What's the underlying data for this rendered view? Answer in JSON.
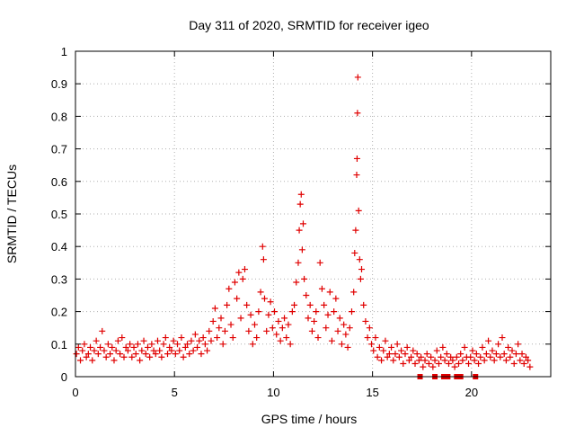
{
  "chart_data": {
    "type": "scatter",
    "title": "Day 311 of 2020, SRMTID for receiver igeo",
    "xlabel": "GPS time / hours",
    "ylabel": "SRMTID / TECUs",
    "xlim": [
      0,
      24
    ],
    "ylim": [
      0,
      1
    ],
    "xticks": [
      0,
      5,
      10,
      15,
      20
    ],
    "xtick_labels": [
      "0",
      "5",
      "10",
      "15",
      "20"
    ],
    "yticks": [
      0,
      0.1,
      0.2,
      0.3,
      0.4,
      0.5,
      0.6,
      0.7,
      0.8,
      0.9,
      1
    ],
    "ytick_labels": [
      "0",
      "0.1",
      "0.2",
      "0.3",
      "0.4",
      "0.5",
      "0.6",
      "0.7",
      "0.8",
      "0.9",
      "1"
    ],
    "grid": true,
    "marker": "plus",
    "series_color": "#e00000",
    "series": [
      {
        "name": "SRMTID",
        "points": [
          [
            0.05,
            0.07
          ],
          [
            0.15,
            0.09
          ],
          [
            0.25,
            0.05
          ],
          [
            0.35,
            0.08
          ],
          [
            0.45,
            0.1
          ],
          [
            0.55,
            0.06
          ],
          [
            0.65,
            0.07
          ],
          [
            0.75,
            0.09
          ],
          [
            0.85,
            0.05
          ],
          [
            0.95,
            0.08
          ],
          [
            1.05,
            0.11
          ],
          [
            1.15,
            0.07
          ],
          [
            1.25,
            0.09
          ],
          [
            1.35,
            0.14
          ],
          [
            1.45,
            0.08
          ],
          [
            1.55,
            0.06
          ],
          [
            1.65,
            0.1
          ],
          [
            1.75,
            0.07
          ],
          [
            1.85,
            0.09
          ],
          [
            1.95,
            0.05
          ],
          [
            2.05,
            0.08
          ],
          [
            2.15,
            0.11
          ],
          [
            2.25,
            0.07
          ],
          [
            2.35,
            0.12
          ],
          [
            2.45,
            0.06
          ],
          [
            2.55,
            0.09
          ],
          [
            2.65,
            0.08
          ],
          [
            2.75,
            0.1
          ],
          [
            2.85,
            0.06
          ],
          [
            2.95,
            0.09
          ],
          [
            3.05,
            0.07
          ],
          [
            3.15,
            0.1
          ],
          [
            3.25,
            0.05
          ],
          [
            3.35,
            0.08
          ],
          [
            3.45,
            0.11
          ],
          [
            3.55,
            0.07
          ],
          [
            3.65,
            0.09
          ],
          [
            3.75,
            0.06
          ],
          [
            3.85,
            0.1
          ],
          [
            3.95,
            0.08
          ],
          [
            4.05,
            0.07
          ],
          [
            4.15,
            0.11
          ],
          [
            4.25,
            0.08
          ],
          [
            4.35,
            0.06
          ],
          [
            4.45,
            0.1
          ],
          [
            4.55,
            0.12
          ],
          [
            4.65,
            0.07
          ],
          [
            4.75,
            0.09
          ],
          [
            4.85,
            0.08
          ],
          [
            4.95,
            0.11
          ],
          [
            5.05,
            0.07
          ],
          [
            5.15,
            0.1
          ],
          [
            5.25,
            0.08
          ],
          [
            5.35,
            0.12
          ],
          [
            5.45,
            0.06
          ],
          [
            5.55,
            0.09
          ],
          [
            5.65,
            0.1
          ],
          [
            5.75,
            0.07
          ],
          [
            5.85,
            0.11
          ],
          [
            5.95,
            0.08
          ],
          [
            6.05,
            0.13
          ],
          [
            6.15,
            0.09
          ],
          [
            6.25,
            0.11
          ],
          [
            6.35,
            0.07
          ],
          [
            6.45,
            0.12
          ],
          [
            6.55,
            0.1
          ],
          [
            6.65,
            0.08
          ],
          [
            6.75,
            0.14
          ],
          [
            6.85,
            0.11
          ],
          [
            6.95,
            0.17
          ],
          [
            7.05,
            0.21
          ],
          [
            7.15,
            0.12
          ],
          [
            7.25,
            0.15
          ],
          [
            7.35,
            0.18
          ],
          [
            7.45,
            0.1
          ],
          [
            7.55,
            0.14
          ],
          [
            7.65,
            0.22
          ],
          [
            7.75,
            0.27
          ],
          [
            7.85,
            0.16
          ],
          [
            7.95,
            0.12
          ],
          [
            8.05,
            0.29
          ],
          [
            8.15,
            0.24
          ],
          [
            8.25,
            0.32
          ],
          [
            8.35,
            0.18
          ],
          [
            8.45,
            0.3
          ],
          [
            8.55,
            0.33
          ],
          [
            8.65,
            0.22
          ],
          [
            8.75,
            0.14
          ],
          [
            8.85,
            0.19
          ],
          [
            8.95,
            0.1
          ],
          [
            9.05,
            0.16
          ],
          [
            9.15,
            0.12
          ],
          [
            9.25,
            0.2
          ],
          [
            9.35,
            0.26
          ],
          [
            9.45,
            0.4
          ],
          [
            9.5,
            0.36
          ],
          [
            9.55,
            0.24
          ],
          [
            9.65,
            0.14
          ],
          [
            9.75,
            0.19
          ],
          [
            9.85,
            0.23
          ],
          [
            9.95,
            0.15
          ],
          [
            10.05,
            0.2
          ],
          [
            10.15,
            0.13
          ],
          [
            10.25,
            0.17
          ],
          [
            10.35,
            0.11
          ],
          [
            10.45,
            0.15
          ],
          [
            10.55,
            0.18
          ],
          [
            10.65,
            0.12
          ],
          [
            10.75,
            0.16
          ],
          [
            10.85,
            0.1
          ],
          [
            10.95,
            0.2
          ],
          [
            11.05,
            0.22
          ],
          [
            11.15,
            0.29
          ],
          [
            11.25,
            0.35
          ],
          [
            11.3,
            0.45
          ],
          [
            11.35,
            0.53
          ],
          [
            11.4,
            0.56
          ],
          [
            11.45,
            0.39
          ],
          [
            11.5,
            0.47
          ],
          [
            11.55,
            0.3
          ],
          [
            11.65,
            0.25
          ],
          [
            11.75,
            0.18
          ],
          [
            11.85,
            0.22
          ],
          [
            11.95,
            0.14
          ],
          [
            12.05,
            0.17
          ],
          [
            12.15,
            0.2
          ],
          [
            12.25,
            0.12
          ],
          [
            12.35,
            0.35
          ],
          [
            12.45,
            0.27
          ],
          [
            12.55,
            0.22
          ],
          [
            12.65,
            0.15
          ],
          [
            12.75,
            0.19
          ],
          [
            12.85,
            0.26
          ],
          [
            12.95,
            0.11
          ],
          [
            13.05,
            0.2
          ],
          [
            13.15,
            0.24
          ],
          [
            13.25,
            0.14
          ],
          [
            13.35,
            0.18
          ],
          [
            13.45,
            0.1
          ],
          [
            13.55,
            0.16
          ],
          [
            13.65,
            0.13
          ],
          [
            13.75,
            0.09
          ],
          [
            13.85,
            0.15
          ],
          [
            13.95,
            0.2
          ],
          [
            14.05,
            0.26
          ],
          [
            14.1,
            0.38
          ],
          [
            14.15,
            0.45
          ],
          [
            14.2,
            0.62
          ],
          [
            14.22,
            0.67
          ],
          [
            14.24,
            0.81
          ],
          [
            14.26,
            0.92
          ],
          [
            14.3,
            0.51
          ],
          [
            14.35,
            0.36
          ],
          [
            14.4,
            0.3
          ],
          [
            14.45,
            0.33
          ],
          [
            14.55,
            0.22
          ],
          [
            14.65,
            0.17
          ],
          [
            14.75,
            0.12
          ],
          [
            14.85,
            0.15
          ],
          [
            14.95,
            0.1
          ],
          [
            15.05,
            0.08
          ],
          [
            15.15,
            0.12
          ],
          [
            15.25,
            0.06
          ],
          [
            15.35,
            0.09
          ],
          [
            15.45,
            0.05
          ],
          [
            15.55,
            0.08
          ],
          [
            15.65,
            0.11
          ],
          [
            15.75,
            0.06
          ],
          [
            15.85,
            0.07
          ],
          [
            15.95,
            0.09
          ],
          [
            16.05,
            0.05
          ],
          [
            16.15,
            0.07
          ],
          [
            16.25,
            0.1
          ],
          [
            16.35,
            0.06
          ],
          [
            16.45,
            0.08
          ],
          [
            16.55,
            0.04
          ],
          [
            16.65,
            0.07
          ],
          [
            16.75,
            0.09
          ],
          [
            16.85,
            0.05
          ],
          [
            16.95,
            0.06
          ],
          [
            17.05,
            0.08
          ],
          [
            17.15,
            0.04
          ],
          [
            17.25,
            0.07
          ],
          [
            17.35,
            0.05
          ],
          [
            17.45,
            0.06
          ],
          [
            17.55,
            0.03
          ],
          [
            17.65,
            0.05
          ],
          [
            17.75,
            0.07
          ],
          [
            17.85,
            0.04
          ],
          [
            17.95,
            0.06
          ],
          [
            18.05,
            0.03
          ],
          [
            18.15,
            0.05
          ],
          [
            18.25,
            0.08
          ],
          [
            18.35,
            0.04
          ],
          [
            18.45,
            0.06
          ],
          [
            18.55,
            0.09
          ],
          [
            18.65,
            0.05
          ],
          [
            18.75,
            0.07
          ],
          [
            18.85,
            0.04
          ],
          [
            18.95,
            0.06
          ],
          [
            19.05,
            0.05
          ],
          [
            19.15,
            0.03
          ],
          [
            19.25,
            0.06
          ],
          [
            19.35,
            0.04
          ],
          [
            19.45,
            0.07
          ],
          [
            19.55,
            0.05
          ],
          [
            19.65,
            0.09
          ],
          [
            19.75,
            0.06
          ],
          [
            19.85,
            0.04
          ],
          [
            19.95,
            0.06
          ],
          [
            20.05,
            0.08
          ],
          [
            20.15,
            0.05
          ],
          [
            20.25,
            0.07
          ],
          [
            20.35,
            0.04
          ],
          [
            20.45,
            0.06
          ],
          [
            20.55,
            0.09
          ],
          [
            20.65,
            0.05
          ],
          [
            20.75,
            0.07
          ],
          [
            20.85,
            0.11
          ],
          [
            20.95,
            0.06
          ],
          [
            21.05,
            0.08
          ],
          [
            21.15,
            0.05
          ],
          [
            21.25,
            0.07
          ],
          [
            21.35,
            0.1
          ],
          [
            21.45,
            0.06
          ],
          [
            21.55,
            0.12
          ],
          [
            21.65,
            0.07
          ],
          [
            21.75,
            0.05
          ],
          [
            21.85,
            0.09
          ],
          [
            21.95,
            0.06
          ],
          [
            22.05,
            0.08
          ],
          [
            22.15,
            0.04
          ],
          [
            22.25,
            0.07
          ],
          [
            22.35,
            0.1
          ],
          [
            22.45,
            0.05
          ],
          [
            22.55,
            0.07
          ],
          [
            22.65,
            0.04
          ],
          [
            22.75,
            0.06
          ],
          [
            22.85,
            0.05
          ],
          [
            22.95,
            0.03
          ],
          [
            17.4,
            0.0
          ],
          [
            18.15,
            0.0
          ],
          [
            18.6,
            0.0
          ],
          [
            18.8,
            0.0
          ],
          [
            19.25,
            0.0
          ],
          [
            19.45,
            0.0
          ],
          [
            20.2,
            0.0
          ]
        ]
      }
    ]
  }
}
